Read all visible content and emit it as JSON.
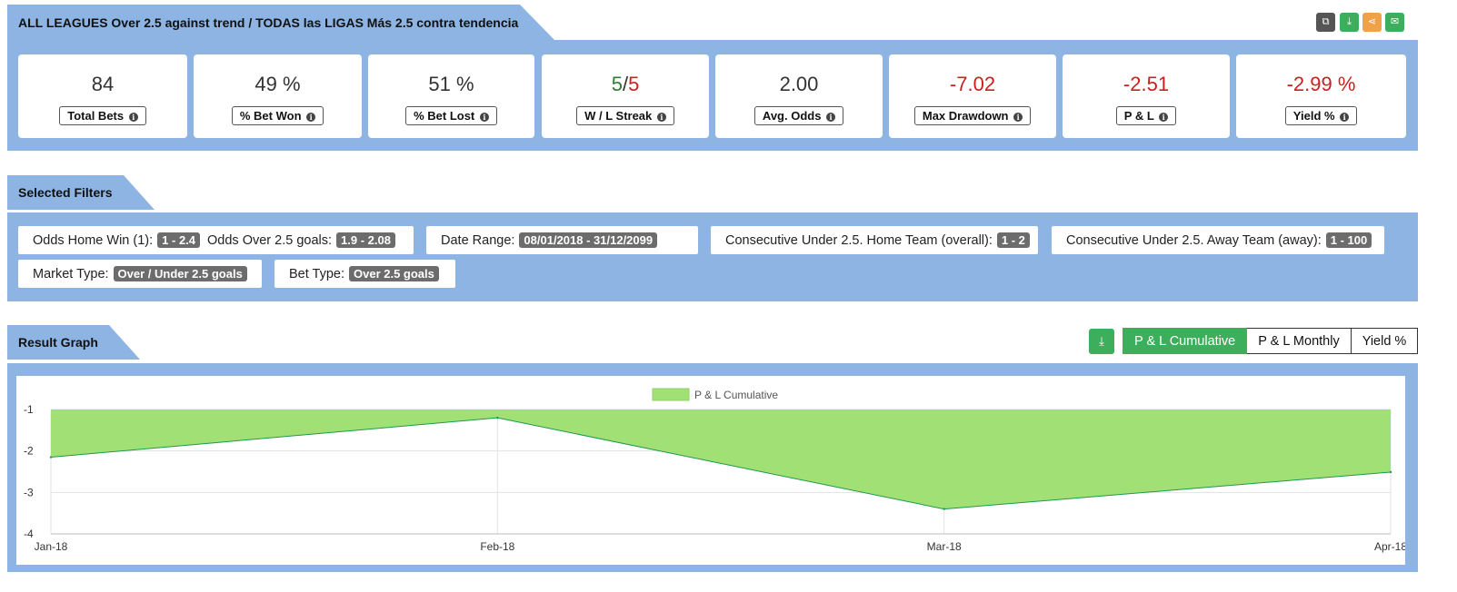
{
  "header": {
    "title": "ALL LEAGUES Over 2.5 against trend / TODAS las LIGAS Más 2.5 contra tendencia",
    "tools": [
      {
        "name": "copy-icon",
        "color": "#555555",
        "glyph": "⧉"
      },
      {
        "name": "download-icon",
        "color": "#3cae5c",
        "glyph": "⤓"
      },
      {
        "name": "share-icon",
        "color": "#f0a24a",
        "glyph": "⋖"
      },
      {
        "name": "email-icon",
        "color": "#3cae5c",
        "glyph": "✉"
      }
    ]
  },
  "stats": [
    {
      "value": "84",
      "label": "Total Bets"
    },
    {
      "value": "49 %",
      "label": "% Bet Won"
    },
    {
      "value": "51 %",
      "label": "% Bet Lost"
    },
    {
      "value_won": "5",
      "value_sep": "/",
      "value_lost": "5",
      "label": "W / L Streak"
    },
    {
      "value": "2.00",
      "label": "Avg. Odds"
    },
    {
      "value": "-7.02",
      "label": "Max Drawdown"
    },
    {
      "value": "-2.51",
      "label": "P & L"
    },
    {
      "value": "-2.99 %",
      "label": "Yield %"
    }
  ],
  "filters": {
    "title": "Selected Filters",
    "items": [
      {
        "label": "Odds Home Win (1):",
        "value": "1 - 2.4"
      },
      {
        "label": "Odds Over 2.5 goals:",
        "value": "1.9 - 2.08"
      },
      {
        "label": "Date Range:",
        "value": "08/01/2018 - 31/12/2099"
      },
      {
        "label": "Consecutive Under 2.5. Home Team (overall):",
        "value": "1 - 2"
      },
      {
        "label": "Consecutive Under 2.5. Away Team (away):",
        "value": "1 - 100"
      },
      {
        "label": "Market Type:",
        "value": "Over / Under 2.5 goals"
      },
      {
        "label": "Bet Type:",
        "value": "Over 2.5 goals"
      }
    ]
  },
  "graph": {
    "title": "Result Graph",
    "buttons": [
      "P & L Cumulative",
      "P & L Monthly",
      "Yield %"
    ],
    "active_button": "P & L Cumulative"
  },
  "chart_data": {
    "type": "area",
    "x": [
      "Jan-18",
      "Feb-18",
      "Mar-18",
      "Apr-18"
    ],
    "series": [
      {
        "name": "P & L Cumulative",
        "values": [
          -2.15,
          -1.2,
          -3.4,
          -2.51
        ],
        "color": "#a1e075"
      }
    ],
    "ylim": [
      -4,
      -1
    ],
    "yticks": [
      -1,
      -2,
      -3,
      -4
    ],
    "legend": "top-center",
    "grid": true
  }
}
